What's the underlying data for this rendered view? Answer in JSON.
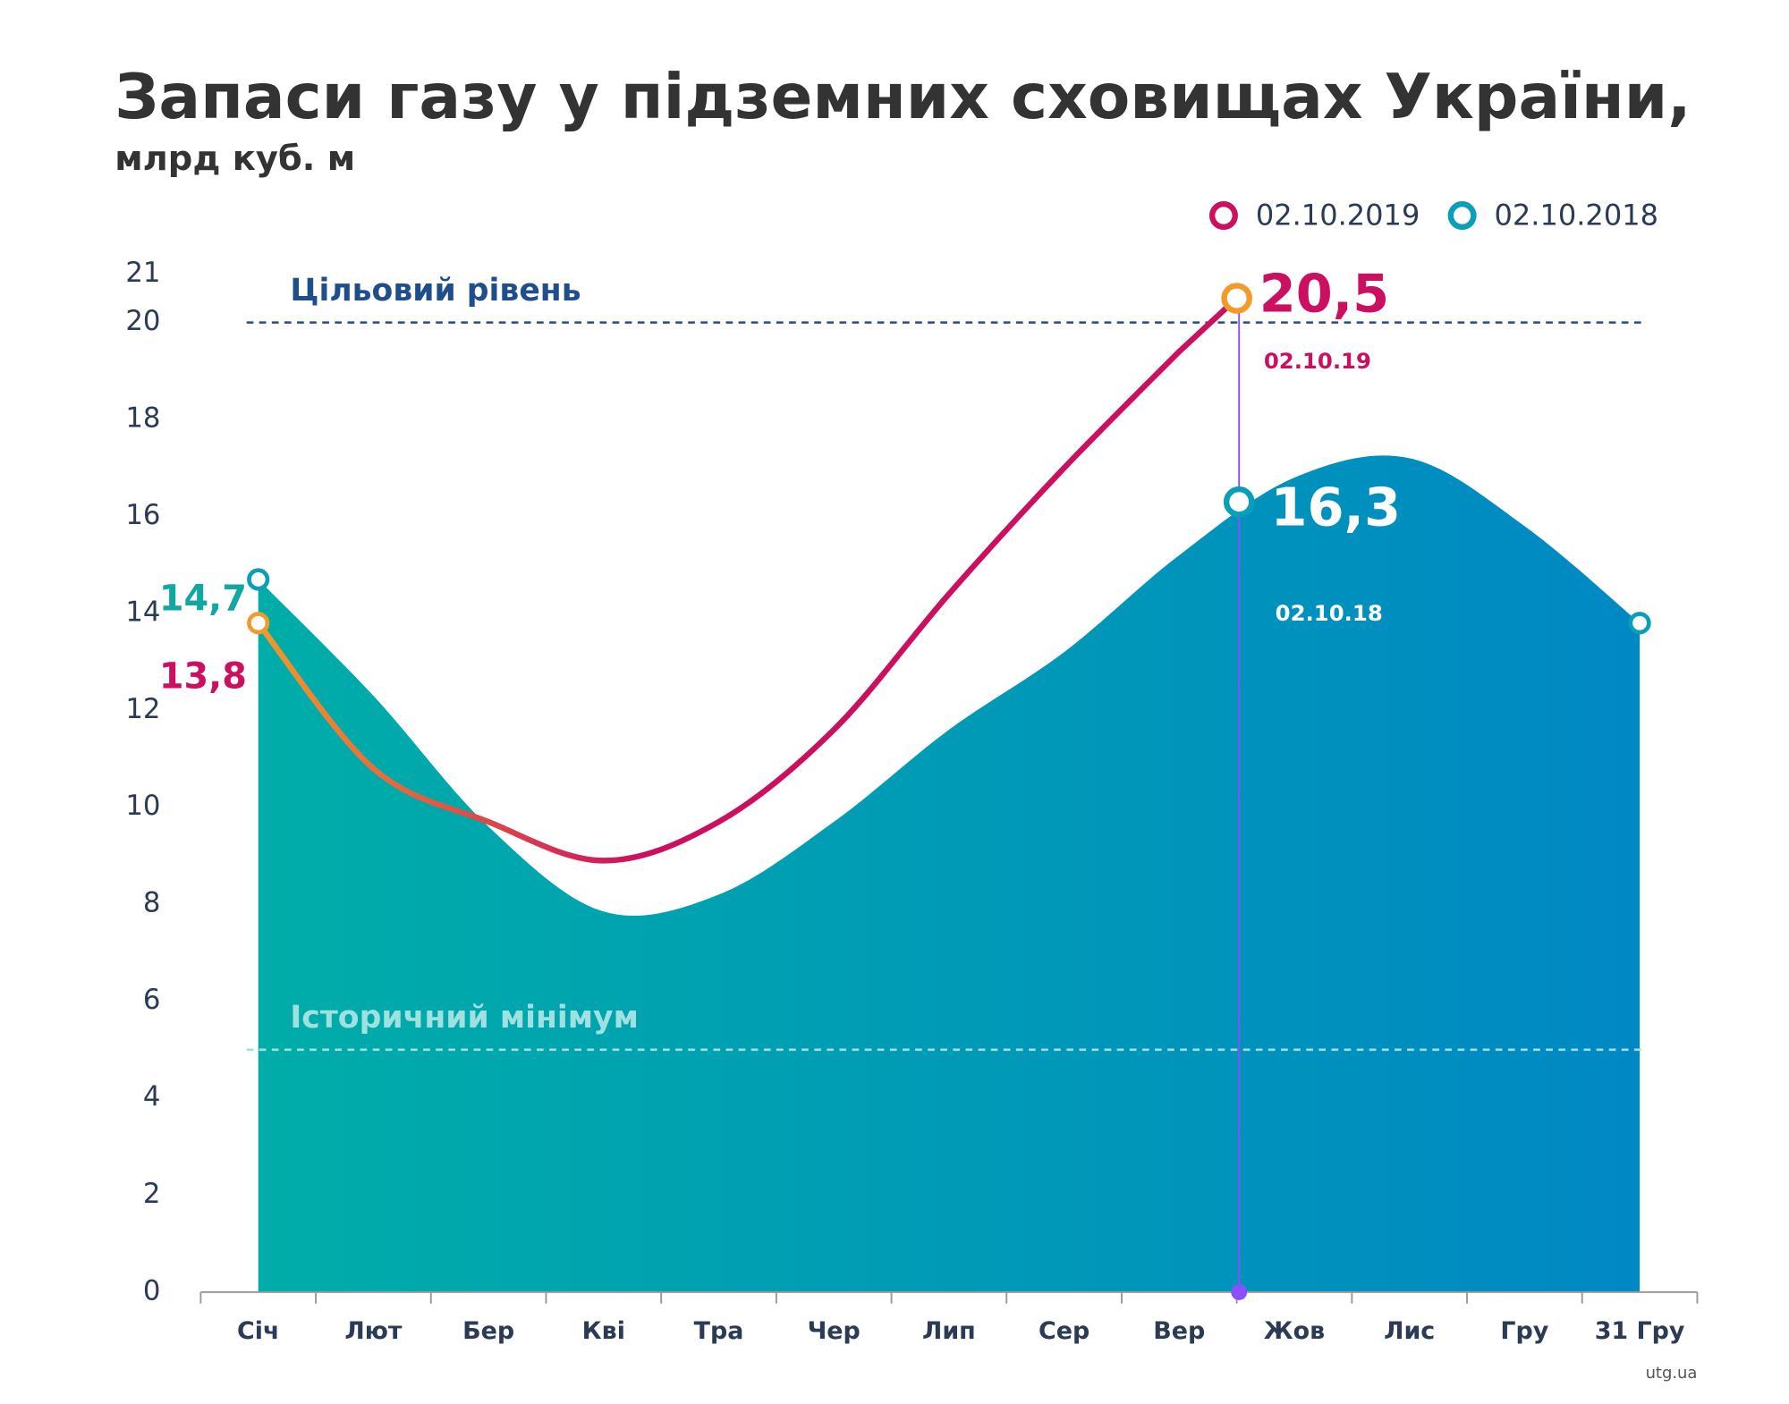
{
  "chart_data": {
    "type": "area-line",
    "title": "Запаси газу у підземних сховищах України,",
    "subtitle": "млрд куб. м",
    "source": "utg.ua",
    "categories": [
      "Січ",
      "Лют",
      "Бер",
      "Кві",
      "Тра",
      "Чер",
      "Лип",
      "Сер",
      "Вер",
      "Жов",
      "Лис",
      "Гру",
      "31 Гру"
    ],
    "series": [
      {
        "name": "02.10.2019",
        "color": "#cc1060",
        "start_color": "#f39a2a",
        "kind": "line",
        "values": [
          13.8,
          10.8,
          9.7,
          8.9,
          9.7,
          11.6,
          14.4,
          17.0,
          19.4,
          null,
          null,
          null,
          null
        ],
        "value_labels": [
          "13,8",
          null,
          null,
          null,
          null,
          null,
          null,
          null,
          null,
          null,
          null,
          null,
          null
        ]
      },
      {
        "name": "02.10.2018",
        "color": "#0a9fb8",
        "start_color": "#00ada8",
        "end_color": "#0088c4",
        "kind": "area",
        "values": [
          14.7,
          12.3,
          9.6,
          7.85,
          8.2,
          9.7,
          11.6,
          13.2,
          15.2,
          16.8,
          17.2,
          15.8,
          13.8
        ],
        "value_labels": [
          "14,7",
          null,
          null,
          null,
          null,
          null,
          null,
          null,
          null,
          null,
          null,
          null,
          null
        ]
      }
    ],
    "annotations": [
      {
        "series": 0,
        "value": 20.5,
        "label": "20,5",
        "date": "02.10.19"
      },
      {
        "series": 1,
        "value": 16.3,
        "label": "16,3",
        "date": "02.10.18"
      }
    ],
    "reference_lines": [
      {
        "value": 20,
        "label": "Цільовий рівень",
        "color": "#1f4e8c"
      },
      {
        "value": 5,
        "label": "Історичний мінімум",
        "color": "#9fe0e0"
      }
    ],
    "ylim": [
      0,
      21
    ],
    "yticks": [
      0,
      2,
      4,
      6,
      8,
      10,
      12,
      14,
      16,
      18,
      20,
      21
    ],
    "grid": false
  }
}
